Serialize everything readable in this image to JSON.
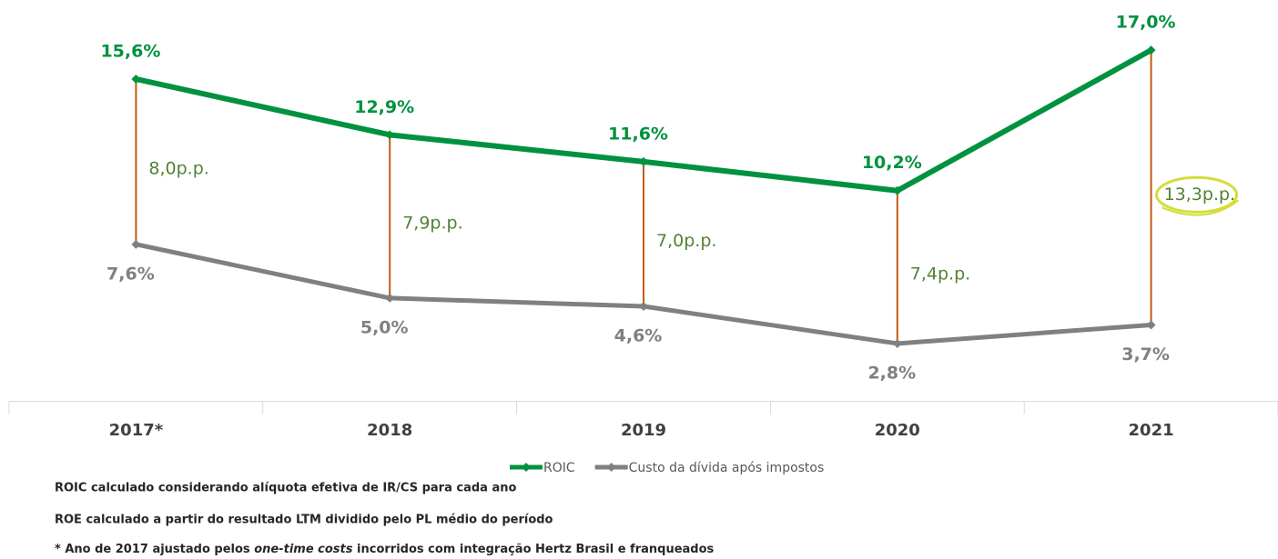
{
  "chart_data": {
    "type": "line",
    "categories": [
      "2017*",
      "2018",
      "2019",
      "2020",
      "2021"
    ],
    "series": [
      {
        "name": "ROIC",
        "color": "#00923f",
        "values": [
          15.6,
          12.9,
          11.6,
          10.2,
          17.0
        ],
        "value_labels": [
          "15,6%",
          "12,9%",
          "11,6%",
          "10,2%",
          "17,0%"
        ]
      },
      {
        "name": "Custo da dívida após impostos",
        "color": "#808080",
        "values": [
          7.6,
          5.0,
          4.6,
          2.8,
          3.7
        ],
        "value_labels": [
          "7,6%",
          "5,0%",
          "4,6%",
          "2,8%",
          "3,7%"
        ]
      }
    ],
    "spreads": {
      "color": "#c55a11",
      "label_color": "#548235",
      "values": [
        8.0,
        7.9,
        7.0,
        7.4,
        13.3
      ],
      "value_labels": [
        "8,0p.p.",
        "7,9p.p.",
        "7,0p.p.",
        "7,4p.p.",
        "13,3p.p."
      ]
    },
    "ylim": [
      0,
      18
    ],
    "notes": [
      "ROIC calculado considerando alíquota efetiva de IR/CS para cada ano",
      "ROE calculado a partir do resultado LTM dividido pelo PL médio do período",
      [
        "*  Ano de 2017 ajustado pelos ",
        "one-time costs",
        " incorridos com integração Hertz Brasil e franqueados"
      ]
    ]
  }
}
